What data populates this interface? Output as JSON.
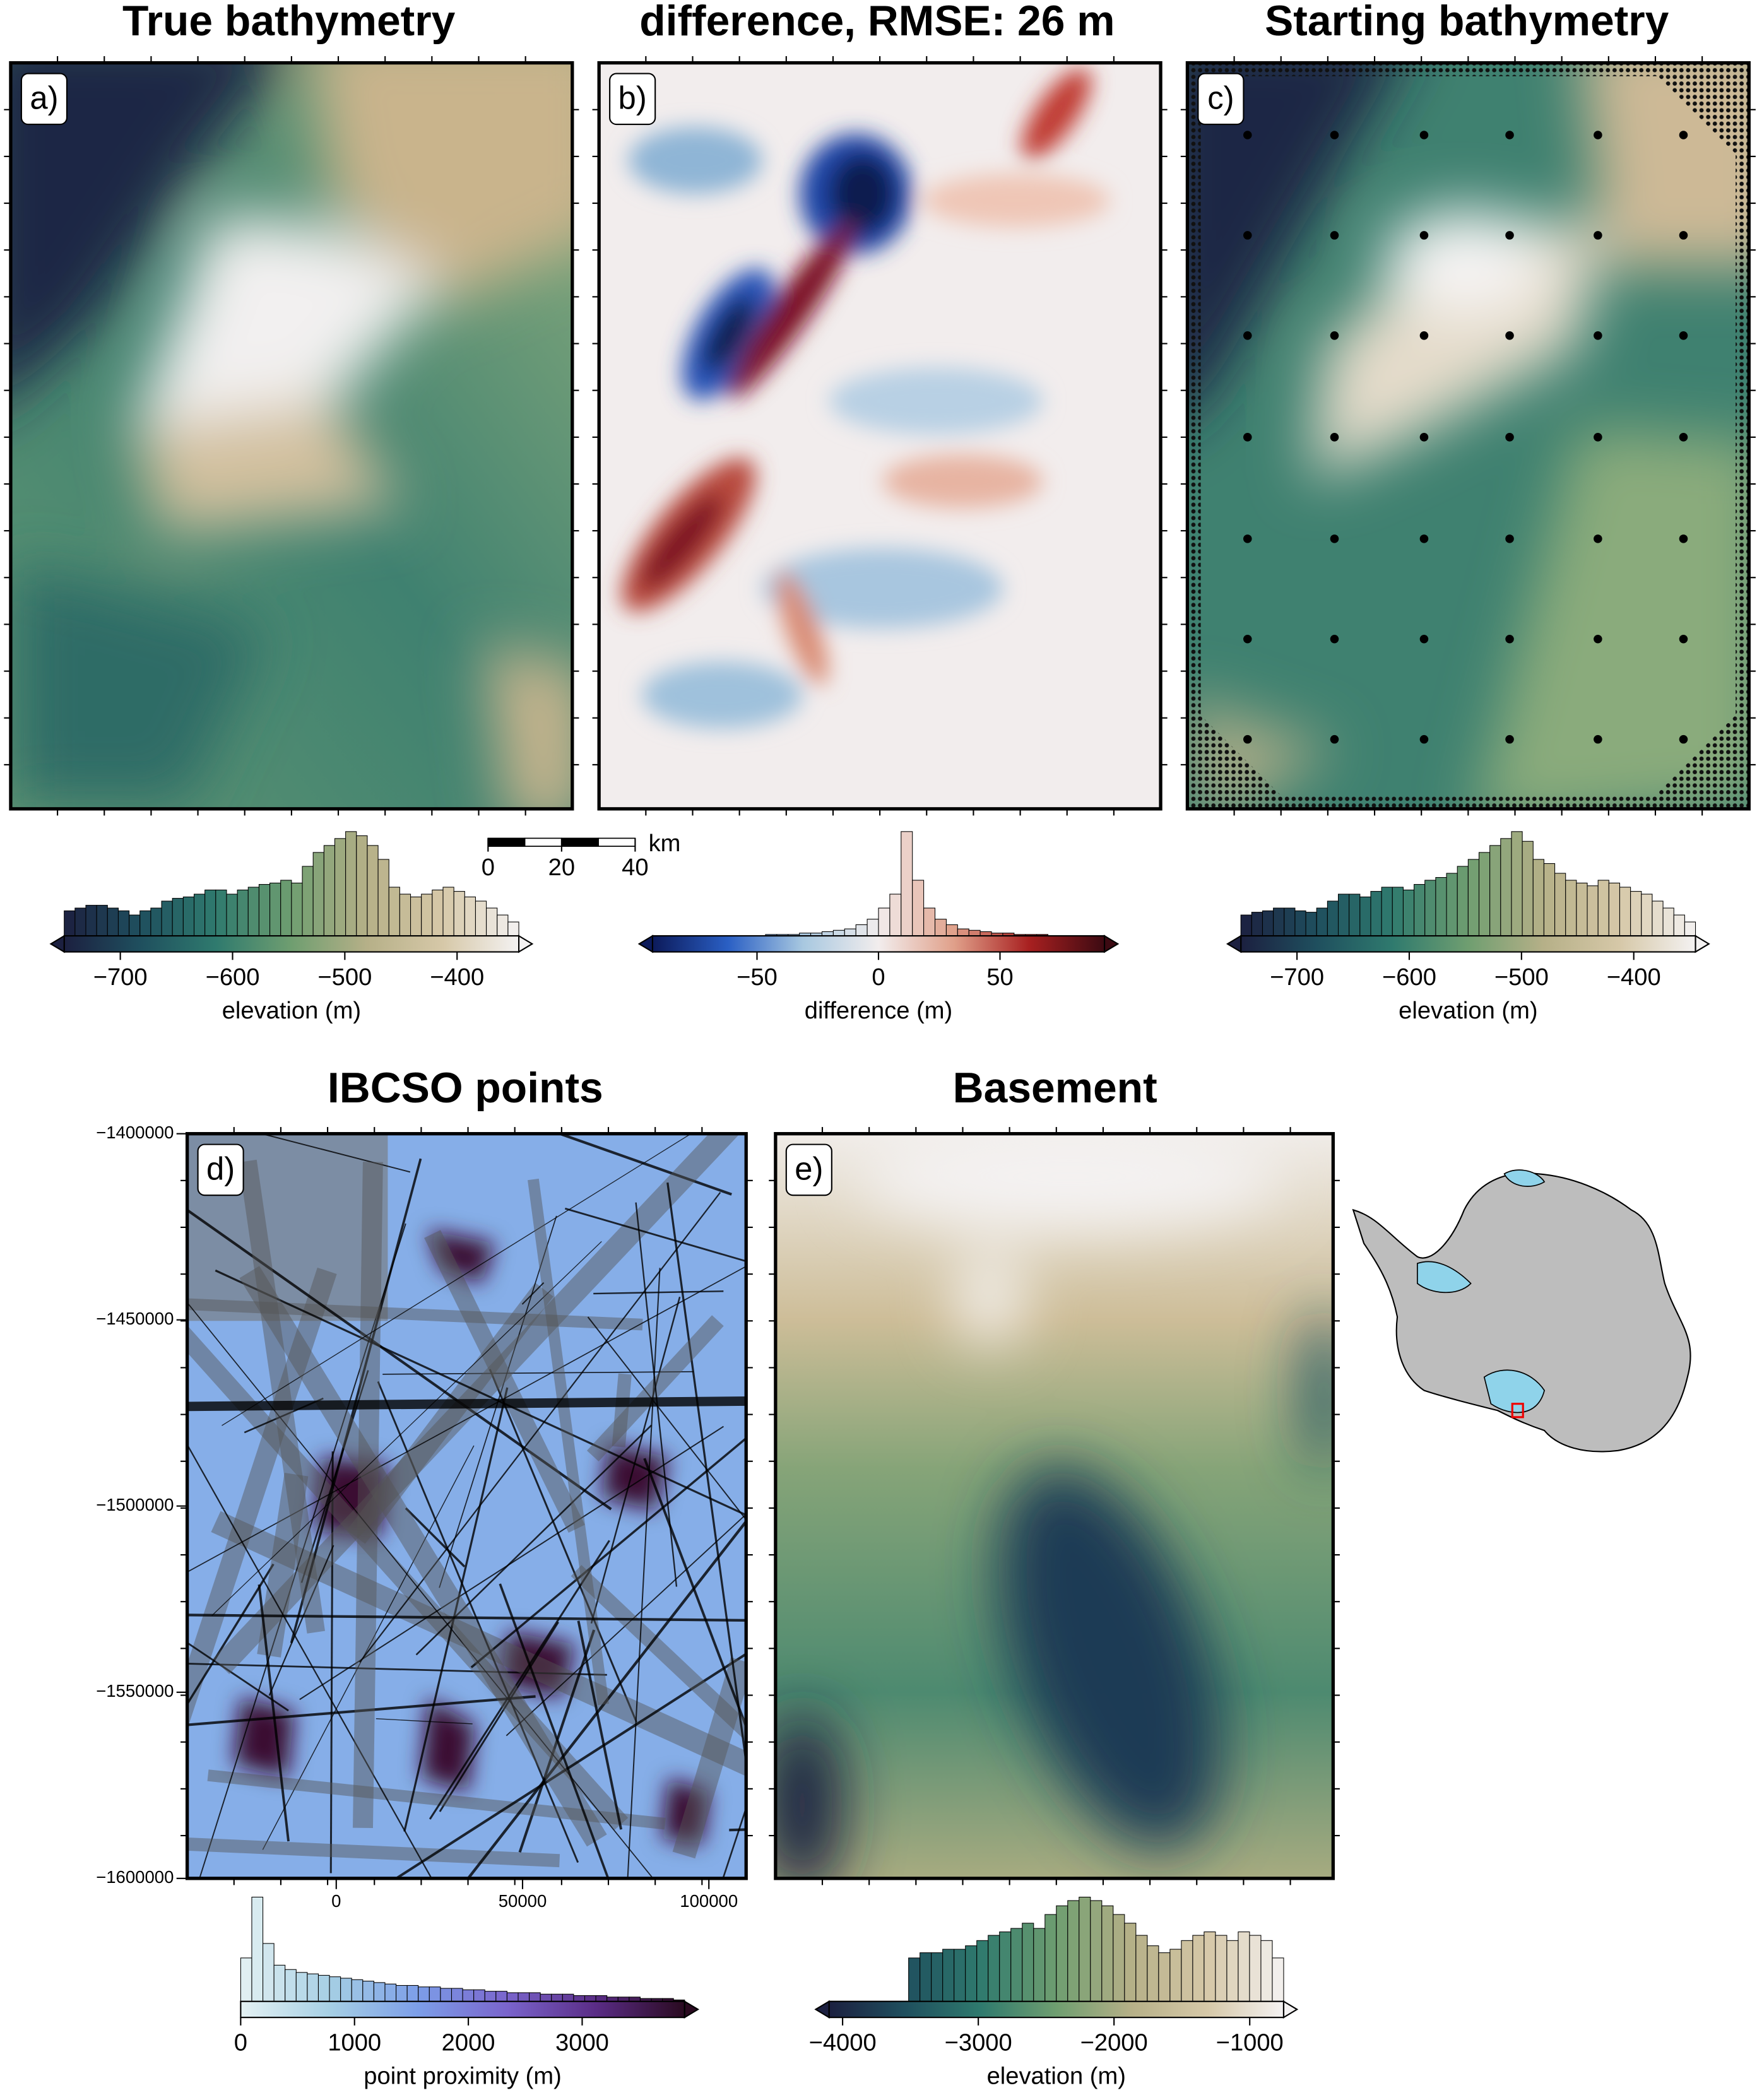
{
  "chart_data": [
    {
      "type": "map",
      "title": "True bathymetry",
      "panel_label": "a)",
      "colorbar": {
        "label": "elevation (m)",
        "lim": [
          -750,
          -345
        ],
        "extend": "both",
        "colors": [
          "#1c2040",
          "#1f4f5e",
          "#2f7a6e",
          "#6f9e70",
          "#b6b088",
          "#d6c8a8",
          "#f4f2f2"
        ],
        "ticks": [
          {
            "value": -700,
            "label": "−700"
          },
          {
            "value": -600,
            "label": "−600"
          },
          {
            "value": -500,
            "label": "−500"
          },
          {
            "value": -400,
            "label": "−400"
          }
        ],
        "histogram": [
          18,
          20,
          22,
          22,
          20,
          18,
          15,
          18,
          20,
          25,
          27,
          28,
          30,
          33,
          33,
          30,
          33,
          35,
          37,
          38,
          40,
          38,
          50,
          60,
          65,
          70,
          75,
          72,
          65,
          55,
          35,
          30,
          28,
          30,
          33,
          35,
          32,
          28,
          25,
          20,
          15,
          10
        ]
      }
    },
    {
      "type": "map",
      "title": "difference, RMSE: 26 m",
      "panel_label": "b)",
      "colorbar": {
        "label": "difference (m)",
        "lim": [
          -93,
          93
        ],
        "extend": "both",
        "colors": [
          "#0c1a5a",
          "#2a5fc4",
          "#a8c8e0",
          "#f2eded",
          "#e0a08a",
          "#a82020",
          "#3c0a12"
        ],
        "ticks": [
          {
            "value": -50,
            "label": "−50"
          },
          0,
          50
        ],
        "histogram": [
          0,
          0,
          0,
          0,
          0,
          0,
          0,
          0,
          0,
          0,
          1,
          1,
          1,
          2,
          2,
          3,
          4,
          5,
          8,
          12,
          20,
          30,
          75,
          40,
          20,
          12,
          8,
          5,
          4,
          3,
          2,
          2,
          1,
          1,
          1,
          0,
          0,
          0,
          0,
          0
        ]
      },
      "scalebar": {
        "ticks": [
          0,
          20,
          40
        ],
        "unit": "km"
      }
    },
    {
      "type": "map",
      "title": "Starting bathymetry",
      "panel_label": "c)",
      "colorbar": {
        "label": "elevation (m)",
        "lim": [
          -750,
          -345
        ],
        "extend": "both",
        "colors": [
          "#1c2040",
          "#1f4f5e",
          "#2f7a6e",
          "#6f9e70",
          "#b6b088",
          "#d6c8a8",
          "#f4f2f2"
        ],
        "ticks": [
          {
            "value": -700,
            "label": "−700"
          },
          {
            "value": -600,
            "label": "−600"
          },
          {
            "value": -500,
            "label": "−500"
          },
          {
            "value": -400,
            "label": "−400"
          }
        ],
        "histogram": [
          15,
          17,
          18,
          20,
          20,
          18,
          17,
          20,
          25,
          30,
          30,
          28,
          32,
          35,
          35,
          33,
          37,
          40,
          42,
          45,
          50,
          55,
          60,
          65,
          70,
          75,
          68,
          55,
          52,
          45,
          40,
          38,
          36,
          40,
          38,
          35,
          32,
          30,
          25,
          20,
          15,
          10
        ]
      }
    },
    {
      "type": "map",
      "title": "IBCSO points",
      "panel_label": "d)",
      "xlim": [
        -40000,
        110000
      ],
      "xticks": [
        0,
        50000,
        100000
      ],
      "ylim": [
        -1600000,
        -1400000
      ],
      "yticks": [
        {
          "value": -1400000,
          "label": "−1400000"
        },
        {
          "value": -1450000,
          "label": "−1450000"
        },
        {
          "value": -1500000,
          "label": "−1500000"
        },
        {
          "value": -1550000,
          "label": "−1550000"
        },
        {
          "value": -1600000,
          "label": "−1600000"
        }
      ],
      "colorbar": {
        "label": "point proximity (m)",
        "lim": [
          0,
          3900
        ],
        "extend": "max",
        "colors": [
          "#e4f1f3",
          "#a6cfe4",
          "#7c9ee8",
          "#7a64cc",
          "#5a2c86",
          "#2a0a20"
        ],
        "ticks": [
          0,
          1000,
          2000,
          3000
        ],
        "histogram": [
          30,
          72,
          40,
          25,
          22,
          20,
          19,
          18,
          17,
          16,
          15,
          14,
          13,
          12,
          11,
          11,
          10,
          10,
          9,
          9,
          8,
          8,
          7,
          7,
          6,
          6,
          6,
          5,
          5,
          5,
          4,
          4,
          4,
          3,
          3,
          3,
          2,
          2,
          2,
          1
        ]
      }
    },
    {
      "type": "map",
      "title": "Basement",
      "panel_label": "e)",
      "colorbar": {
        "label": "elevation (m)",
        "lim": [
          -4100,
          -750
        ],
        "extend": "both",
        "colors": [
          "#1c2040",
          "#1f4f5e",
          "#2f7a6e",
          "#6f9e70",
          "#b6b088",
          "#d6c8a8",
          "#f4f2f2"
        ],
        "ticks": [
          {
            "value": -4000,
            "label": "−4000"
          },
          {
            "value": -3000,
            "label": "−3000"
          },
          {
            "value": -2000,
            "label": "−2000"
          },
          {
            "value": -1000,
            "label": "−1000"
          }
        ],
        "histogram": [
          0,
          0,
          0,
          0,
          0,
          0,
          0,
          25,
          28,
          28,
          30,
          30,
          32,
          35,
          38,
          40,
          42,
          45,
          42,
          50,
          55,
          58,
          60,
          58,
          55,
          50,
          45,
          38,
          32,
          28,
          30,
          35,
          38,
          40,
          38,
          35,
          40,
          38,
          35,
          25
        ]
      }
    }
  ]
}
